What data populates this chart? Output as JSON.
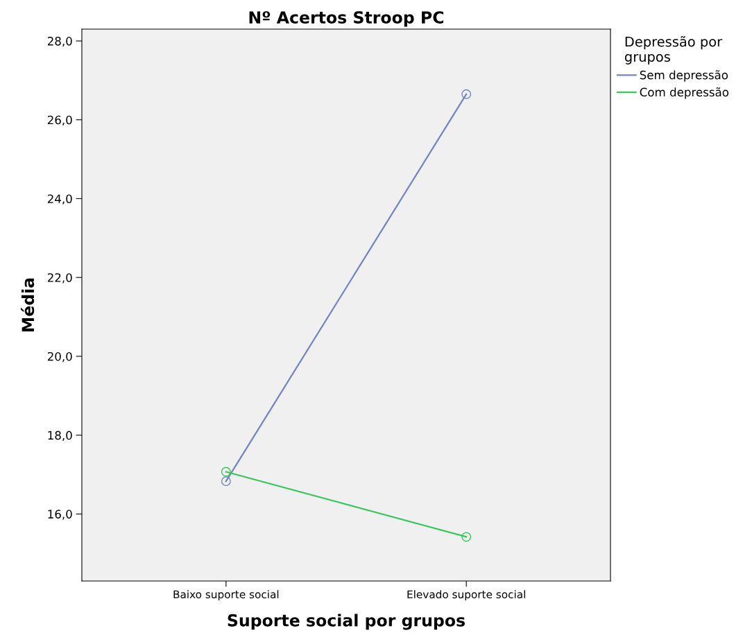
{
  "chart_data": {
    "type": "line",
    "title": "Nº Acertos Stroop PC",
    "xlabel": "Suporte social por grupos",
    "ylabel": "Média",
    "legend_title": "Depressão por\ngrupos",
    "categories": [
      "Baixo suporte social",
      "Elevado suporte social"
    ],
    "series": [
      {
        "name": "Sem depressão",
        "color": "#7084c4",
        "values": [
          16.83,
          26.65
        ]
      },
      {
        "name": "Com depressão",
        "color": "#3ac65a",
        "values": [
          17.07,
          15.42
        ]
      }
    ],
    "ylim": [
      14.3,
      28.3
    ],
    "yticks": [
      {
        "value": 16,
        "label": "16,0"
      },
      {
        "value": 18,
        "label": "18,0"
      },
      {
        "value": 20,
        "label": "20,0"
      },
      {
        "value": 22,
        "label": "22,0"
      },
      {
        "value": 24,
        "label": "24,0"
      },
      {
        "value": 26,
        "label": "26,0"
      },
      {
        "value": 28,
        "label": "28,0"
      }
    ],
    "marker": "circle",
    "line_style": "solid",
    "legend": "top right",
    "grid": false
  }
}
